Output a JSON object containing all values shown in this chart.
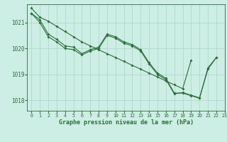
{
  "title": "Graphe pression niveau de la mer (hPa)",
  "background_color": "#cceee4",
  "plot_bg_color": "#cceee4",
  "grid_color": "#aad4c8",
  "line_color": "#2d6e3e",
  "marker_color": "#2d6e3e",
  "xlim": [
    -0.5,
    23
  ],
  "ylim": [
    1017.6,
    1021.7
  ],
  "yticks": [
    1018,
    1019,
    1020,
    1021
  ],
  "xticks": [
    0,
    1,
    2,
    3,
    4,
    5,
    6,
    7,
    8,
    9,
    10,
    11,
    12,
    13,
    14,
    15,
    16,
    17,
    18,
    19,
    20,
    21,
    22,
    23
  ],
  "series1": [
    1021.35,
    1021.1,
    1020.55,
    1020.35,
    1020.1,
    1020.05,
    1019.8,
    1019.95,
    1020.05,
    1020.55,
    1020.45,
    1020.25,
    1020.15,
    1019.95,
    1019.45,
    1019.05,
    1018.85,
    1018.28,
    1018.28,
    1018.18,
    1018.08,
    1019.25,
    1019.65,
    null
  ],
  "series2": [
    1021.35,
    1021.0,
    1020.45,
    1020.25,
    1020.0,
    1019.95,
    1019.75,
    1019.9,
    1020.0,
    1020.5,
    1020.4,
    1020.2,
    1020.1,
    1019.9,
    1019.4,
    1019.0,
    1018.8,
    1018.25,
    1018.3,
    1018.2,
    1018.1,
    1019.2,
    1019.65,
    null
  ],
  "series3": [
    1021.55,
    1021.2,
    1021.05,
    1020.85,
    1020.65,
    1020.45,
    1020.25,
    1020.1,
    1019.95,
    1019.8,
    1019.65,
    1019.5,
    1019.35,
    1019.2,
    1019.05,
    1018.9,
    1018.75,
    1018.6,
    1018.45,
    1019.55,
    null,
    null,
    null,
    null
  ]
}
